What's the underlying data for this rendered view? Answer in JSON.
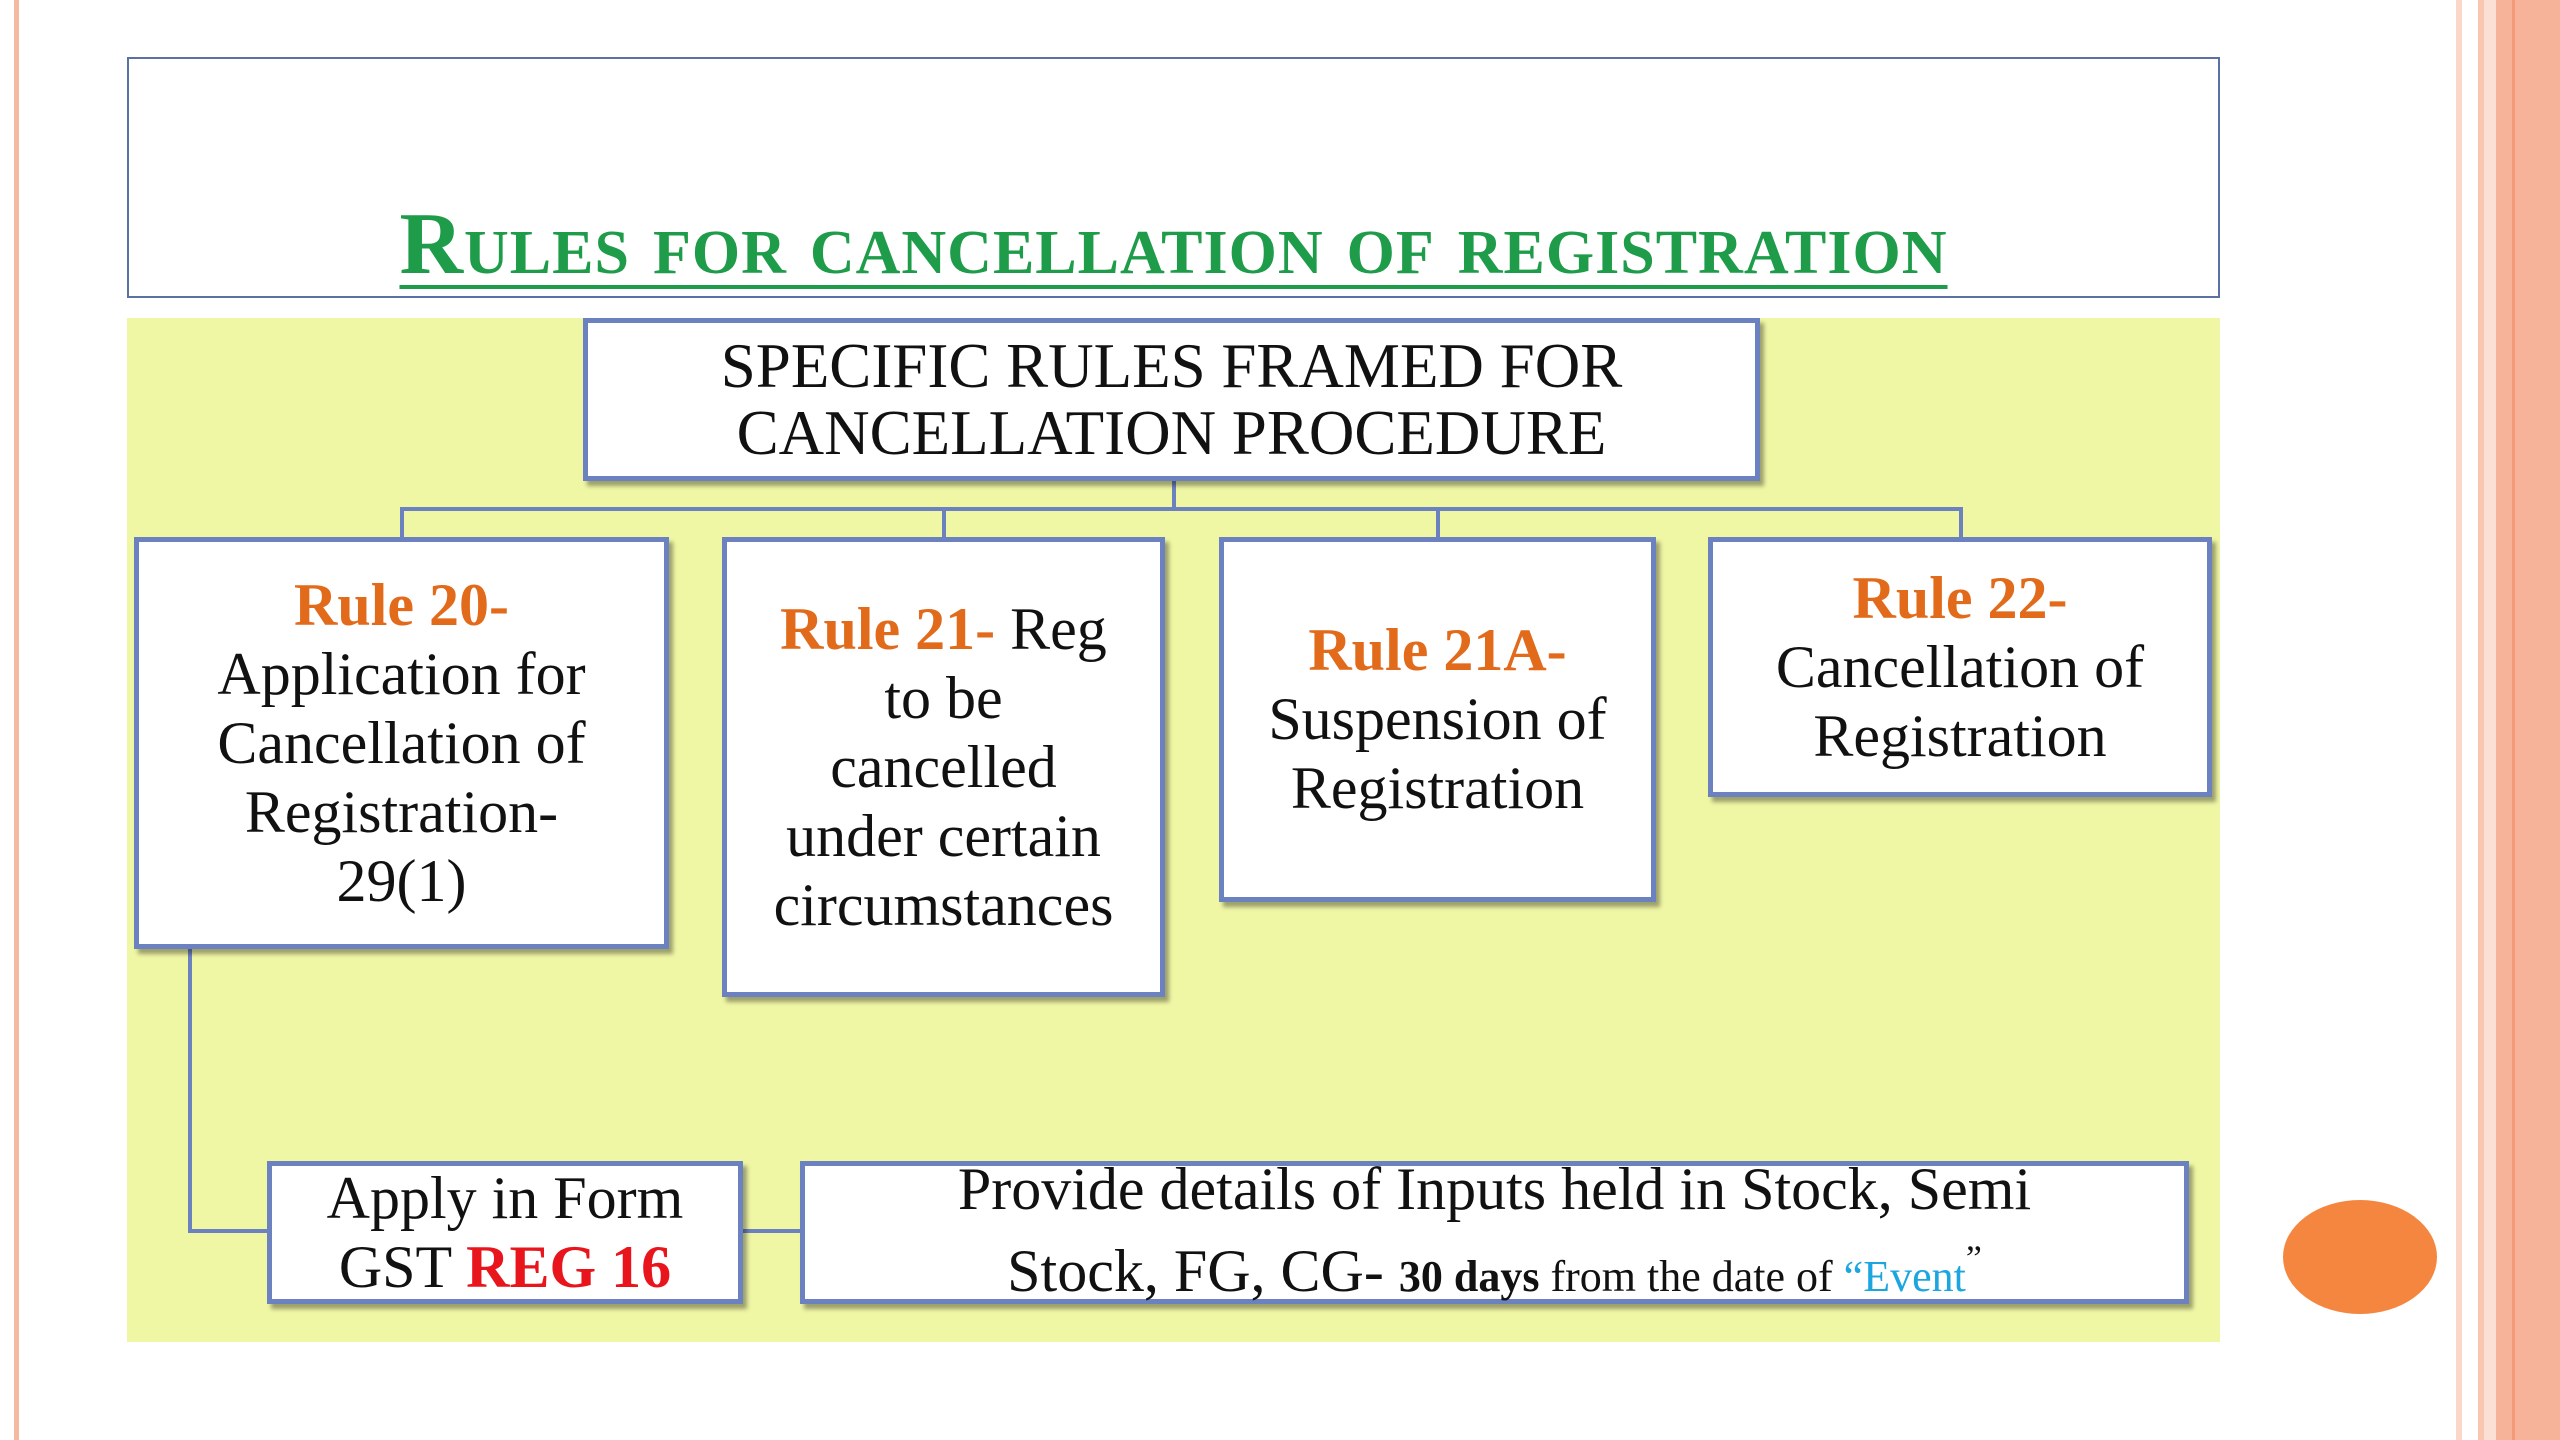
{
  "title": "Rules for cancellation of registration",
  "root": {
    "line1": "SPECIFIC RULES FRAMED FOR",
    "line2": "CANCELLATION PROCEDURE"
  },
  "rules": [
    {
      "head": "Rule 20-",
      "lines": [
        "Application for",
        "Cancellation of",
        "Registration-",
        "29(1)"
      ]
    },
    {
      "head": "Rule 21-",
      "inline": " Reg",
      "lines": [
        "to be",
        "cancelled",
        "under certain",
        "circumstances"
      ]
    },
    {
      "head": "Rule 21A-",
      "lines": [
        "Suspension of",
        "Registration"
      ]
    },
    {
      "head": "Rule 22-",
      "lines": [
        "Cancellation of",
        "Registration"
      ]
    }
  ],
  "form_box": {
    "line1": "Apply in Form",
    "prefix": "GST ",
    "form": "REG 16"
  },
  "details_box": {
    "line1": "Provide details of Inputs held in Stock, Semi",
    "line2_a": "Stock, FG, CG- ",
    "line2_bold": "30 days",
    "line2_c": " from the date of ",
    "event_open": "“Event",
    "event_close": "”"
  },
  "colors": {
    "title": "#1f9c4a",
    "rule_heading": "#e26a1b",
    "form_highlight": "#e8161c",
    "event": "#1ca6df",
    "diagram_background": "#eff6a4",
    "box_border": "#6c82c0",
    "accent_dot": "#f5863f"
  }
}
